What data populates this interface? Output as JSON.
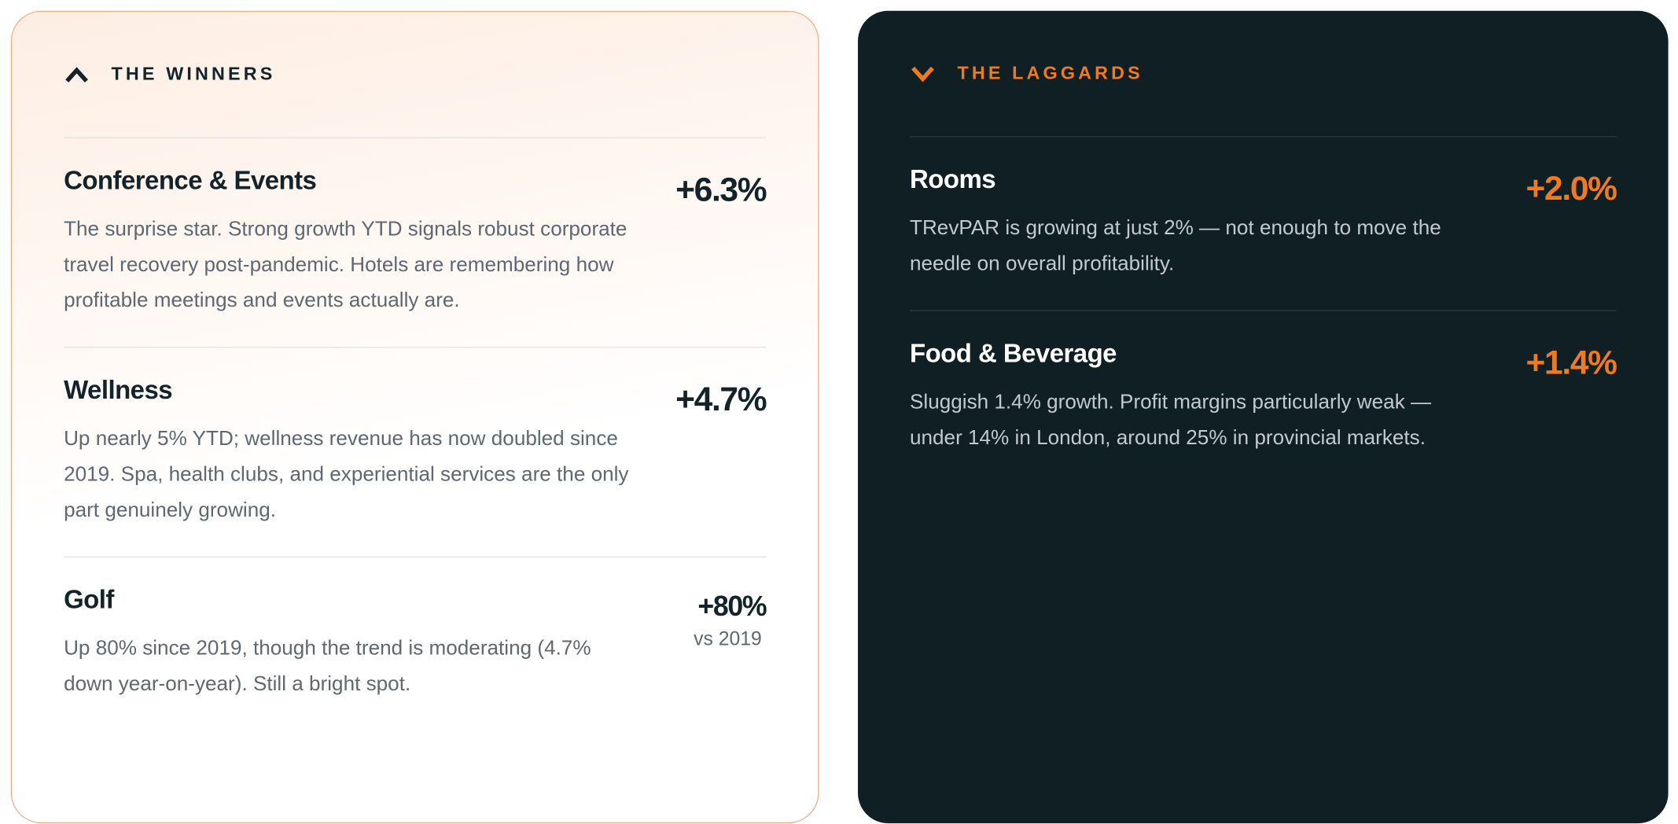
{
  "winners": {
    "heading": "THE WINNERS",
    "items": [
      {
        "title": "Conference & Events",
        "value": "+6.3%",
        "description": "The surprise star. Strong growth YTD signals robust corporate travel recovery post-pandemic. Hotels are remembering how profitable meetings and events actually are."
      },
      {
        "title": "Wellness",
        "value": "+4.7%",
        "description": "Up nearly 5% YTD; wellness revenue has now doubled since 2019. Spa, health clubs, and experiential services are the only part genuinely growing."
      },
      {
        "title": "Golf",
        "value": "+80%",
        "note": "vs 2019",
        "description": "Up 80% since 2019, though the trend is moderating (4.7% down year-on-year). Still a bright spot."
      }
    ]
  },
  "laggards": {
    "heading": "THE LAGGARDS",
    "items": [
      {
        "title": "Rooms",
        "value": "+2.0%",
        "description": "TRevPAR is growing at just 2% — not enough to move the needle on overall profitability."
      },
      {
        "title": "Food & Beverage",
        "value": "+1.4%",
        "description": "Sluggish 1.4% growth. Profit margins particularly weak — under 14% in London, around 25% in provincial markets."
      }
    ]
  }
}
